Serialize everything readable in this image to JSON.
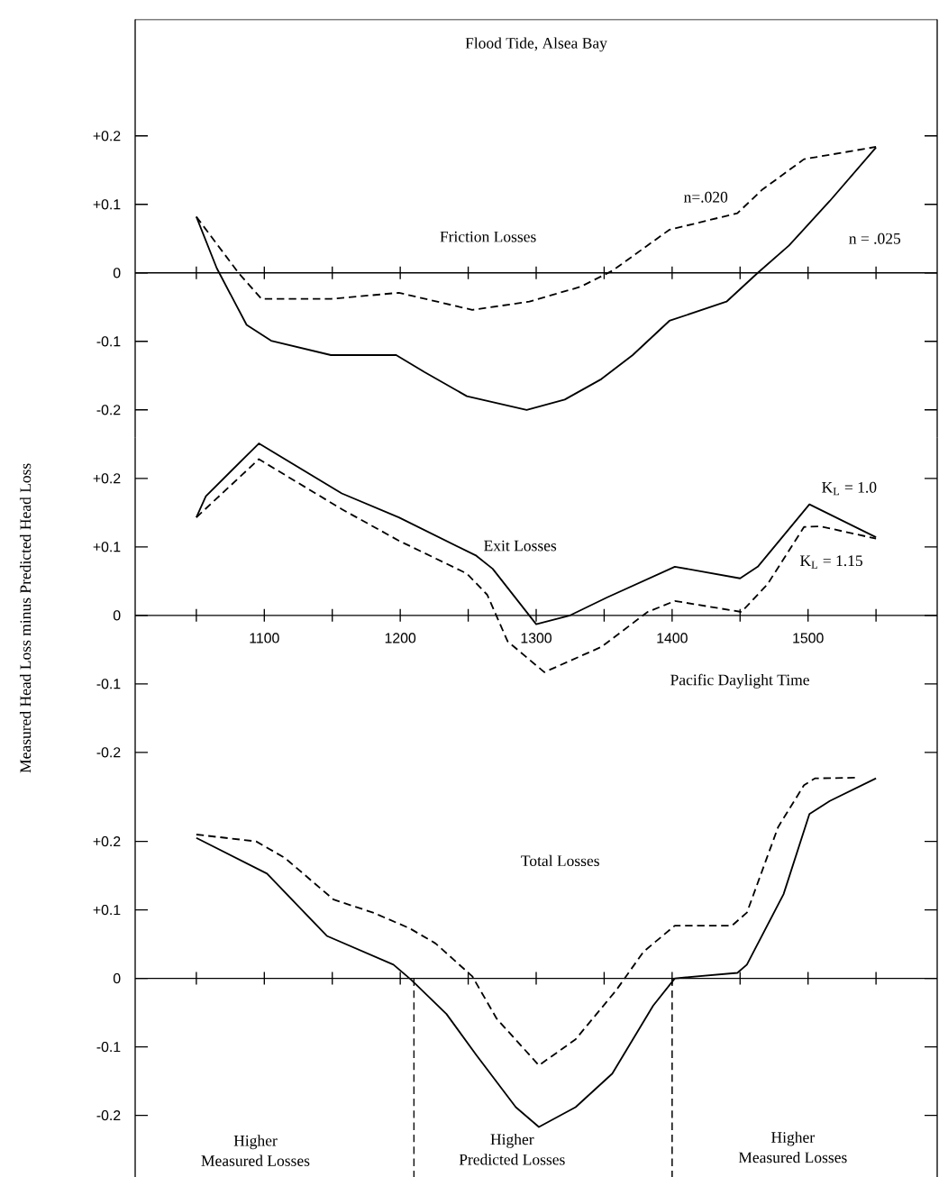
{
  "chart_data": [
    {
      "type": "line",
      "title": "Flood Tide, Alsea Bay",
      "xlim": [
        1005,
        1595
      ],
      "ylim": [
        -0.24,
        0.37
      ],
      "xticks": [
        {
          "value": 1050,
          "label": null
        },
        1100,
        {
          "value": 1150,
          "label": null
        },
        1200,
        {
          "value": 1250,
          "label": null
        },
        1300,
        {
          "value": 1350,
          "label": null
        },
        1400,
        {
          "value": 1450,
          "label": null
        },
        1500,
        {
          "value": 1550,
          "label": null
        }
      ],
      "yticks": [
        {
          "value": -0.2,
          "label": "-0.2"
        },
        {
          "value": -0.1,
          "label": "-0.1"
        },
        {
          "value": 0,
          "label": "0"
        },
        {
          "value": 0.1,
          "label": "+0.1"
        },
        {
          "value": 0.2,
          "label": "+0.2"
        }
      ],
      "tick_labels": "y",
      "annotations": [
        "Friction Losses"
      ],
      "series": [
        {
          "name": "n=.020",
          "color": "#000000",
          "line_style": "dashed",
          "x": [
            1050,
            1081,
            1098,
            1149,
            1199,
            1253,
            1295,
            1333,
            1356,
            1398,
            1448,
            1466,
            1497,
            1550
          ],
          "values": [
            0.082,
            0.0,
            -0.038,
            -0.038,
            -0.029,
            -0.054,
            -0.042,
            -0.02,
            0.003,
            0.063,
            0.087,
            0.121,
            0.166,
            0.184
          ]
        },
        {
          "name": "n = .025",
          "color": "#000000",
          "line_style": "solid",
          "x": [
            1050,
            1065,
            1087,
            1105,
            1149,
            1197,
            1218,
            1249,
            1293,
            1321,
            1348,
            1371,
            1398,
            1440,
            1463,
            1486,
            1516,
            1550
          ],
          "values": [
            0.082,
            0.007,
            -0.076,
            -0.099,
            -0.12,
            -0.12,
            -0.145,
            -0.18,
            -0.2,
            -0.185,
            -0.155,
            -0.12,
            -0.07,
            -0.042,
            0.0,
            0.04,
            0.105,
            0.183
          ]
        }
      ]
    },
    {
      "type": "line",
      "xlabel": "Pacific Daylight Time",
      "ylabel": "Measured Head Loss minus Predicted Head Loss",
      "xlim": [
        1005,
        1595
      ],
      "ylim": [
        -0.22,
        0.26
      ],
      "xticks": [
        {
          "value": 1050,
          "label": null
        },
        1100,
        {
          "value": 1150,
          "label": null
        },
        1200,
        {
          "value": 1250,
          "label": null
        },
        1300,
        {
          "value": 1350,
          "label": null
        },
        1400,
        {
          "value": 1450,
          "label": null
        },
        1500,
        {
          "value": 1550,
          "label": null
        }
      ],
      "yticks": [
        {
          "value": -0.2,
          "label": "-0.2"
        },
        {
          "value": -0.1,
          "label": "-0.1"
        },
        {
          "value": 0,
          "label": "0"
        },
        {
          "value": 0.1,
          "label": "+0.1"
        },
        {
          "value": 0.2,
          "label": "+0.2"
        }
      ],
      "annotations": [
        "Exit Losses"
      ],
      "series": [
        {
          "name": "K$_{L}$ = 1.0",
          "color": "#000000",
          "line_style": "solid",
          "x": [
            1050,
            1057,
            1096,
            1157,
            1199,
            1256,
            1268,
            1300,
            1325,
            1352,
            1402,
            1450,
            1463,
            1501,
            1550
          ],
          "values": [
            0.143,
            0.174,
            0.251,
            0.178,
            0.143,
            0.087,
            0.068,
            -0.013,
            0.0,
            0.026,
            0.071,
            0.054,
            0.071,
            0.162,
            0.114
          ]
        },
        {
          "name": "K$_{L}$ = 1.15",
          "color": "#000000",
          "line_style": "dashed",
          "x": [
            1050,
            1096,
            1157,
            1199,
            1249,
            1264,
            1279,
            1306,
            1348,
            1382,
            1402,
            1451,
            1470,
            1497,
            1509,
            1550
          ],
          "values": [
            0.143,
            0.228,
            0.155,
            0.109,
            0.061,
            0.03,
            -0.038,
            -0.083,
            -0.046,
            0.005,
            0.021,
            0.005,
            0.045,
            0.129,
            0.13,
            0.112
          ]
        }
      ]
    },
    {
      "type": "line",
      "xlim": [
        1005,
        1595
      ],
      "ylim": [
        -0.29,
        0.31
      ],
      "xticks": [
        {
          "value": 1050,
          "label": null
        },
        1100,
        {
          "value": 1150,
          "label": null
        },
        1200,
        {
          "value": 1250,
          "label": null
        },
        1300,
        {
          "value": 1350,
          "label": null
        },
        1400,
        {
          "value": 1450,
          "label": null
        },
        1500,
        {
          "value": 1550,
          "label": null
        }
      ],
      "yticks": [
        {
          "value": -0.2,
          "label": "-0.2"
        },
        {
          "value": -0.1,
          "label": "-0.1"
        },
        {
          "value": 0,
          "label": "0"
        },
        {
          "value": 0.1,
          "label": "+0.1"
        },
        {
          "value": 0.2,
          "label": "+0.2"
        }
      ],
      "tick_labels": "y",
      "annotations": [
        "Total Losses",
        "Higher",
        "Measured Losses",
        "Higher",
        "Predicted Losses",
        "Higher",
        "Measured Losses"
      ],
      "ref_lines": [
        {
          "axis": "x",
          "value": 1210,
          "line_style": "dashed",
          "color": "#000000"
        },
        {
          "axis": "x",
          "value": 1400,
          "line_style": "dashed",
          "color": "#000000"
        }
      ],
      "series": [
        {
          "color": "#000000",
          "line_style": "dashed",
          "x": [
            1050,
            1094,
            1115,
            1151,
            1180,
            1207,
            1226,
            1253,
            1271,
            1302,
            1329,
            1359,
            1379,
            1402,
            1444,
            1455,
            1478,
            1497,
            1505,
            1535
          ],
          "values": [
            0.21,
            0.2,
            0.176,
            0.115,
            0.096,
            0.073,
            0.051,
            0.003,
            -0.059,
            -0.127,
            -0.089,
            -0.017,
            0.039,
            0.077,
            0.077,
            0.096,
            0.221,
            0.282,
            0.292,
            0.293
          ]
        },
        {
          "color": "#000000",
          "line_style": "solid",
          "x": [
            1050,
            1102,
            1146,
            1195,
            1208,
            1234,
            1256,
            1285,
            1302,
            1329,
            1356,
            1386,
            1402,
            1448,
            1455,
            1482,
            1501,
            1516,
            1550
          ],
          "values": [
            0.205,
            0.153,
            0.062,
            0.02,
            -0.002,
            -0.052,
            -0.112,
            -0.188,
            -0.217,
            -0.188,
            -0.139,
            -0.04,
            0.0,
            0.008,
            0.02,
            0.123,
            0.24,
            0.259,
            0.292
          ]
        }
      ]
    }
  ]
}
